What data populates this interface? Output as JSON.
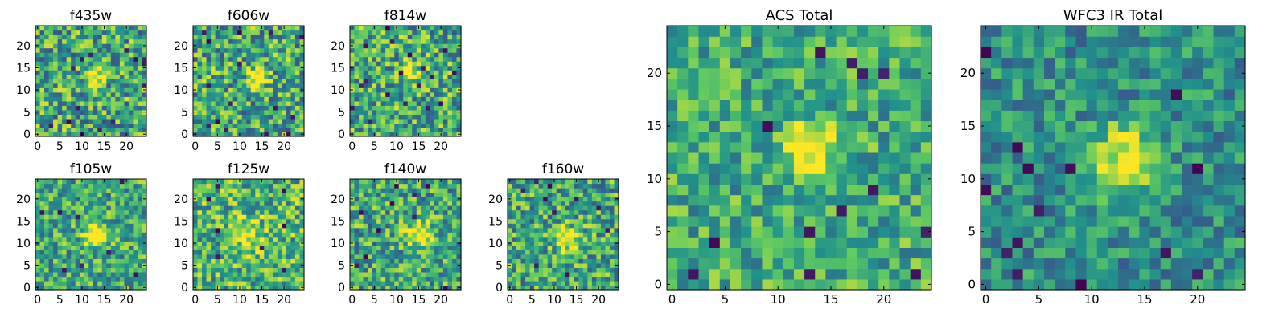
{
  "colormap": [
    "#440154",
    "#3b528b",
    "#21918c",
    "#5ec962",
    "#fde725"
  ],
  "grid_size": 25,
  "chart_data": [
    {
      "type": "heatmap",
      "title": "f435w",
      "xticks": [
        "0",
        "5",
        "10",
        "15",
        "20"
      ],
      "yticks": [
        "0",
        "5",
        "10",
        "15",
        "20"
      ],
      "xlim": [
        0,
        25
      ],
      "ylim": [
        0,
        25
      ],
      "source_x": 13,
      "source_y": 13,
      "source_sigma": 1.5,
      "source_peak": 0.6,
      "background": 0.6,
      "noise": 0.35,
      "dark_pixels": 14,
      "seed": 1
    },
    {
      "type": "heatmap",
      "title": "f606w",
      "xticks": [
        "0",
        "5",
        "10",
        "15",
        "20"
      ],
      "yticks": [
        "0",
        "5",
        "10",
        "15",
        "20"
      ],
      "xlim": [
        0,
        25
      ],
      "ylim": [
        0,
        25
      ],
      "source_x": 14,
      "source_y": 13,
      "source_sigma": 1.3,
      "source_peak": 0.8,
      "background": 0.6,
      "noise": 0.35,
      "dark_pixels": 16,
      "seed": 2
    },
    {
      "type": "heatmap",
      "title": "f814w",
      "xticks": [
        "0",
        "5",
        "10",
        "15",
        "20"
      ],
      "yticks": [
        "0",
        "5",
        "10",
        "15",
        "20"
      ],
      "xlim": [
        0,
        25
      ],
      "ylim": [
        0,
        25
      ],
      "source_x": 13,
      "source_y": 14,
      "source_sigma": 1.4,
      "source_peak": 0.6,
      "background": 0.6,
      "noise": 0.35,
      "dark_pixels": 18,
      "seed": 3
    },
    {
      "type": "heatmap",
      "title": "f105w",
      "xticks": [
        "0",
        "5",
        "10",
        "15",
        "20"
      ],
      "yticks": [
        "0",
        "5",
        "10",
        "15",
        "20"
      ],
      "xlim": [
        0,
        25
      ],
      "ylim": [
        0,
        25
      ],
      "source_x": 13,
      "source_y": 12,
      "source_sigma": 1.8,
      "source_peak": 0.7,
      "background": 0.6,
      "noise": 0.3,
      "dark_pixels": 8,
      "seed": 4
    },
    {
      "type": "heatmap",
      "title": "f125w",
      "xticks": [
        "0",
        "5",
        "10",
        "15",
        "20"
      ],
      "yticks": [
        "0",
        "5",
        "10",
        "15",
        "20"
      ],
      "xlim": [
        0,
        25
      ],
      "ylim": [
        0,
        25
      ],
      "source_x": 12,
      "source_y": 12,
      "source_sigma": 2.5,
      "source_peak": 0.3,
      "background": 0.65,
      "noise": 0.32,
      "dark_pixels": 8,
      "seed": 5
    },
    {
      "type": "heatmap",
      "title": "f140w",
      "xticks": [
        "0",
        "5",
        "10",
        "15",
        "20"
      ],
      "yticks": [
        "0",
        "5",
        "10",
        "15",
        "20"
      ],
      "xlim": [
        0,
        25
      ],
      "ylim": [
        0,
        25
      ],
      "source_x": 15,
      "source_y": 12,
      "source_sigma": 2.0,
      "source_peak": 0.5,
      "background": 0.6,
      "noise": 0.32,
      "dark_pixels": 10,
      "seed": 6
    },
    {
      "type": "heatmap",
      "title": "f160w",
      "xticks": [
        "0",
        "5",
        "10",
        "15",
        "20"
      ],
      "yticks": [
        "0",
        "5",
        "10",
        "15",
        "20"
      ],
      "xlim": [
        0,
        25
      ],
      "ylim": [
        0,
        25
      ],
      "source_x": 13,
      "source_y": 11,
      "source_sigma": 2.0,
      "source_peak": 0.5,
      "background": 0.6,
      "noise": 0.32,
      "dark_pixels": 10,
      "seed": 7
    },
    {
      "type": "heatmap",
      "title": "ACS Total",
      "xticks": [
        "0",
        "5",
        "10",
        "15",
        "20"
      ],
      "yticks": [
        "0",
        "5",
        "10",
        "15",
        "20"
      ],
      "xlim": [
        0,
        25
      ],
      "ylim": [
        0,
        25
      ],
      "source_x": 13,
      "source_y": 13,
      "source_sigma": 1.6,
      "source_peak": 0.6,
      "background": 0.62,
      "noise": 0.25,
      "dark_pixels": 14,
      "seed": 8
    },
    {
      "type": "heatmap",
      "title": "WFC3 IR Total",
      "xticks": [
        "0",
        "5",
        "10",
        "15",
        "20"
      ],
      "yticks": [
        "0",
        "5",
        "10",
        "15",
        "20"
      ],
      "xlim": [
        0,
        25
      ],
      "ylim": [
        0,
        25
      ],
      "source_x": 13,
      "source_y": 12,
      "source_sigma": 2.2,
      "source_peak": 0.5,
      "background": 0.5,
      "noise": 0.22,
      "dark_pixels": 14,
      "seed": 9
    }
  ]
}
